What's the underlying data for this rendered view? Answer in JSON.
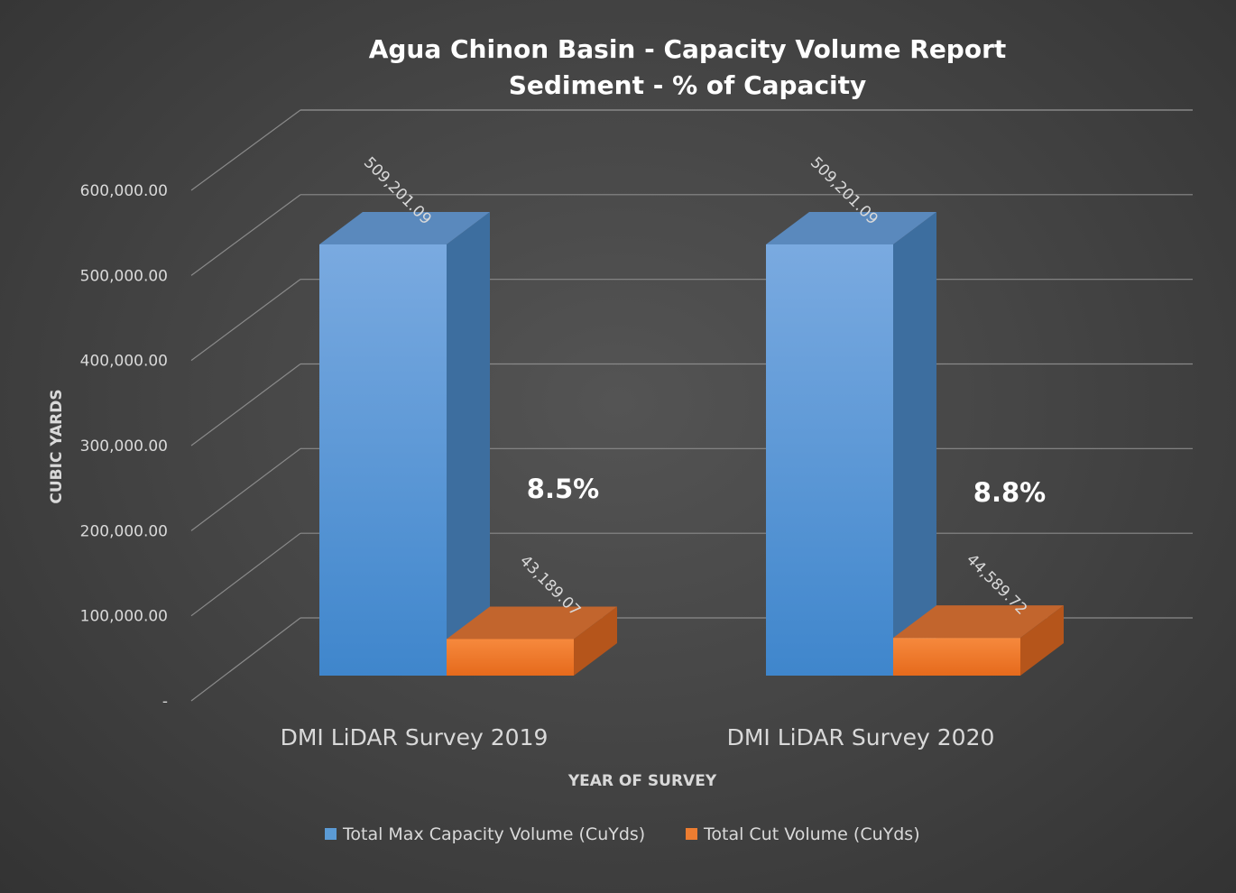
{
  "chart_data": {
    "type": "bar",
    "style": "3d-clustered-column",
    "title": "Agua Chinon Basin - Capacity Volume Report",
    "subtitle": "Sediment - % of Capacity",
    "xlabel": "YEAR OF SURVEY",
    "ylabel": "CUBIC YARDS",
    "categories": [
      "DMI LiDAR Survey 2019",
      "DMI LiDAR Survey 2020"
    ],
    "series": [
      {
        "name": "Total Max Capacity Volume (CuYds)",
        "color": "#5b9bd5",
        "values": [
          509201.09,
          509201.09
        ],
        "data_labels": [
          "509,201.09",
          "509,201.09"
        ]
      },
      {
        "name": "Total Cut Volume (CuYds)",
        "color": "#ed7d31",
        "values": [
          43189.07,
          44589.72
        ],
        "data_labels": [
          "43,189.07",
          "44,589.72"
        ]
      }
    ],
    "annotations": [
      "8.5%",
      "8.8%"
    ],
    "ylim": [
      0,
      600000
    ],
    "yticks": [
      0,
      100000,
      200000,
      300000,
      400000,
      500000,
      600000
    ],
    "ytick_labels": [
      "-",
      "100,000.00",
      "200,000.00",
      "300,000.00",
      "400,000.00",
      "500,000.00",
      "600,000.00"
    ],
    "grid": true,
    "legend": "bottom"
  }
}
